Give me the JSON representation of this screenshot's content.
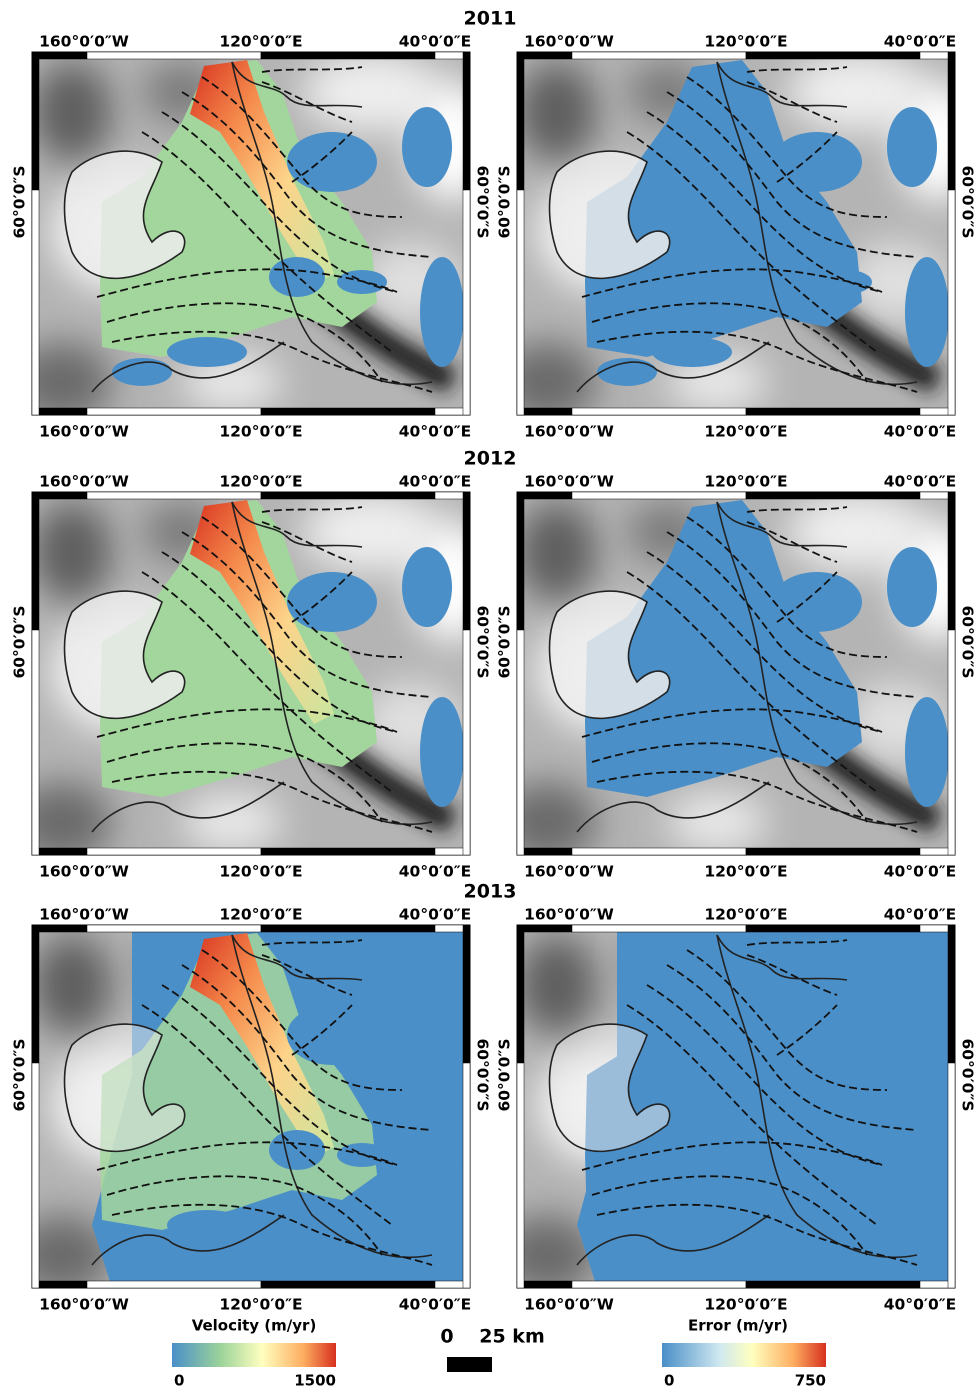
{
  "figure": {
    "rows": [
      {
        "year": "2011"
      },
      {
        "year": "2012"
      },
      {
        "year": "2013"
      }
    ],
    "graticule": {
      "lon_labels": [
        "160°0′0″W",
        "120°0′0″E",
        "40°0′0″E"
      ],
      "lat_label": "60°0′0″S"
    },
    "legends": [
      {
        "title": "Velocity (m/yr)",
        "ticks": [
          0,
          1500
        ]
      },
      {
        "title": "Error (m/yr)",
        "ticks": [
          0,
          750
        ]
      }
    ],
    "scale_bar": {
      "labels": [
        "0",
        "25 km"
      ]
    }
  }
}
